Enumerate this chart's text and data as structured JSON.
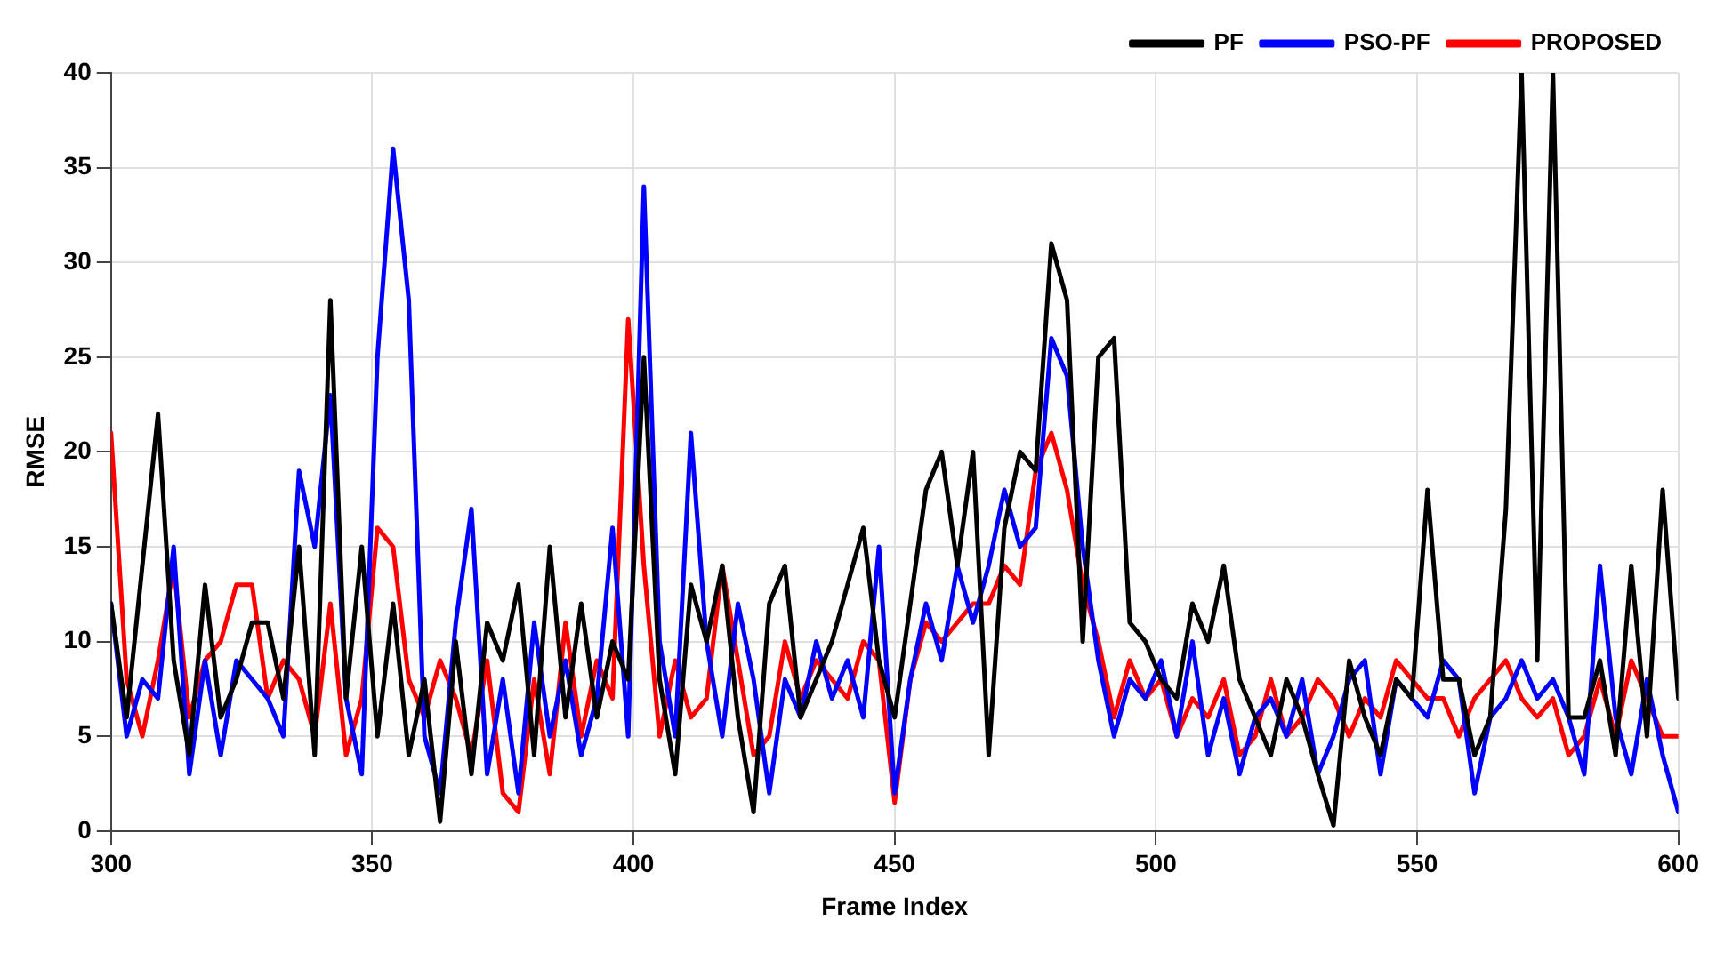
{
  "chart_data": {
    "type": "line",
    "xlabel": "Frame Index",
    "ylabel": "RMSE",
    "x": [
      300,
      303,
      306,
      309,
      312,
      315,
      318,
      321,
      324,
      327,
      330,
      333,
      336,
      339,
      342,
      345,
      348,
      351,
      354,
      357,
      360,
      363,
      366,
      369,
      372,
      375,
      378,
      381,
      384,
      387,
      390,
      393,
      396,
      399,
      402,
      405,
      408,
      411,
      414,
      417,
      420,
      423,
      426,
      429,
      432,
      435,
      438,
      441,
      444,
      447,
      450,
      453,
      456,
      459,
      462,
      465,
      468,
      471,
      474,
      477,
      480,
      483,
      486,
      489,
      492,
      495,
      498,
      501,
      504,
      507,
      510,
      513,
      516,
      519,
      522,
      525,
      528,
      531,
      534,
      537,
      540,
      543,
      546,
      549,
      552,
      555,
      558,
      561,
      564,
      567,
      570,
      573,
      576,
      579,
      582,
      585,
      588,
      591,
      594,
      597,
      600
    ],
    "series": [
      {
        "name": "PF",
        "color": "#000000",
        "values": [
          12,
          6,
          14,
          22,
          9,
          4,
          13,
          6,
          8,
          11,
          11,
          7,
          15,
          4,
          28,
          7,
          15,
          5,
          12,
          4,
          8,
          0.5,
          10,
          3,
          11,
          9,
          13,
          4,
          15,
          6,
          12,
          6,
          10,
          8,
          25,
          8,
          3,
          13,
          10,
          14,
          6,
          1,
          12,
          14,
          6,
          8,
          10,
          13,
          16,
          9,
          6,
          12,
          18,
          20,
          14,
          20,
          4,
          16,
          20,
          19,
          31,
          28,
          10,
          25,
          26,
          11,
          10,
          8,
          7,
          12,
          10,
          14,
          8,
          6,
          4,
          8,
          6,
          3,
          0.3,
          9,
          6,
          4,
          8,
          7,
          18,
          8,
          8,
          4,
          6,
          17,
          40,
          9,
          40,
          6,
          6,
          9,
          4,
          14,
          5,
          18,
          7
        ]
      },
      {
        "name": "PSO-PF",
        "color": "#0000ff",
        "values": [
          12,
          5,
          8,
          7,
          15,
          3,
          9,
          4,
          9,
          8,
          7,
          5,
          19,
          15,
          23,
          7,
          3,
          25,
          36,
          28,
          5,
          2,
          11,
          17,
          3,
          8,
          2,
          11,
          5,
          9,
          4,
          7,
          16,
          5,
          34,
          10,
          5,
          21,
          10,
          5,
          12,
          8,
          2,
          8,
          6,
          10,
          7,
          9,
          6,
          15,
          2,
          8,
          12,
          9,
          14,
          11,
          14,
          18,
          15,
          16,
          26,
          24,
          15,
          9,
          5,
          8,
          7,
          9,
          5,
          10,
          4,
          7,
          3,
          6,
          7,
          5,
          8,
          3,
          5,
          8,
          9,
          3,
          8,
          7,
          6,
          9,
          8,
          2,
          6,
          7,
          9,
          7,
          8,
          6,
          3,
          14,
          6,
          3,
          8,
          4,
          1
        ]
      },
      {
        "name": "PROPOSED",
        "color": "#ff0000",
        "values": [
          21,
          8,
          5,
          9,
          14,
          6,
          9,
          10,
          13,
          13,
          7,
          9,
          8,
          5,
          12,
          4,
          7,
          16,
          15,
          8,
          6,
          9,
          7,
          4,
          9,
          2,
          1,
          8,
          3,
          11,
          5,
          9,
          7,
          27,
          14,
          5,
          9,
          6,
          7,
          14,
          9,
          4,
          5,
          10,
          7,
          9,
          8,
          7,
          10,
          9,
          1.5,
          8,
          11,
          10,
          11,
          12,
          12,
          14,
          13,
          19,
          21,
          18,
          13,
          10,
          6,
          9,
          7,
          8,
          5,
          7,
          6,
          8,
          4,
          5,
          8,
          5,
          6,
          8,
          7,
          5,
          7,
          6,
          9,
          8,
          7,
          7,
          5,
          7,
          8,
          9,
          7,
          6,
          7,
          4,
          5,
          8,
          5,
          9,
          7,
          5,
          5
        ]
      }
    ],
    "xlim": [
      300,
      600
    ],
    "xticks": [
      300,
      350,
      400,
      450,
      500,
      550,
      600
    ],
    "ylim": [
      0,
      40
    ],
    "yticks": [
      0,
      5,
      10,
      15,
      20,
      25,
      30,
      35,
      40
    ],
    "grid": true,
    "legend": "top right",
    "marker": "none",
    "line_style": "solid"
  }
}
